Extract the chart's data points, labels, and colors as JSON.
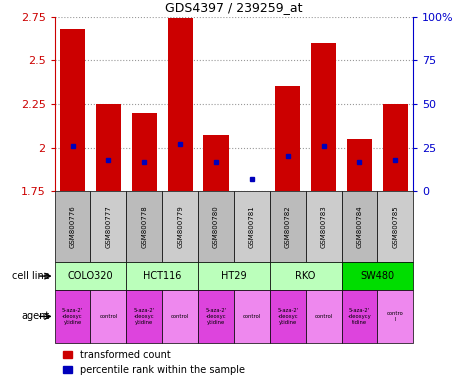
{
  "title": "GDS4397 / 239259_at",
  "samples": [
    "GSM800776",
    "GSM800777",
    "GSM800778",
    "GSM800779",
    "GSM800780",
    "GSM800781",
    "GSM800782",
    "GSM800783",
    "GSM800784",
    "GSM800785"
  ],
  "red_values": [
    2.68,
    2.25,
    2.2,
    2.74,
    2.07,
    1.75,
    2.35,
    2.6,
    2.05,
    2.25
  ],
  "blue_values": [
    0.26,
    0.18,
    0.17,
    0.27,
    0.17,
    0.07,
    0.2,
    0.26,
    0.17,
    0.18
  ],
  "ylim": [
    1.75,
    2.75
  ],
  "yticks": [
    1.75,
    2.0,
    2.25,
    2.5,
    2.75
  ],
  "ytick_labels": [
    "1.75",
    "2",
    "2.25",
    "2.5",
    "2.75"
  ],
  "right_yticks": [
    0,
    0.25,
    0.5,
    0.75,
    1.0
  ],
  "right_ytick_labels": [
    "0",
    "25",
    "50",
    "75",
    "100%"
  ],
  "bar_color": "#cc0000",
  "dot_color": "#0000bb",
  "base": 1.75,
  "bar_width": 0.7,
  "left_label_color": "#cc0000",
  "right_label_color": "#0000cc",
  "sample_bg_even": "#bbbbbb",
  "sample_bg_odd": "#cccccc",
  "cell_line_spans": [
    {
      "label": "COLO320",
      "start": 0,
      "end": 1,
      "color": "#bbffbb"
    },
    {
      "label": "HCT116",
      "start": 2,
      "end": 3,
      "color": "#bbffbb"
    },
    {
      "label": "HT29",
      "start": 4,
      "end": 5,
      "color": "#bbffbb"
    },
    {
      "label": "RKO",
      "start": 6,
      "end": 7,
      "color": "#bbffbb"
    },
    {
      "label": "SW480",
      "start": 8,
      "end": 9,
      "color": "#00dd00"
    }
  ],
  "agent_data": [
    {
      "label": "5-aza-2'\n-deoxyc\nytidine",
      "color": "#dd44dd"
    },
    {
      "label": "control",
      "color": "#ee88ee"
    },
    {
      "label": "5-aza-2'\n-deoxyc\nytidine",
      "color": "#dd44dd"
    },
    {
      "label": "control",
      "color": "#ee88ee"
    },
    {
      "label": "5-aza-2'\n-deoxyc\nytidine",
      "color": "#dd44dd"
    },
    {
      "label": "control",
      "color": "#ee88ee"
    },
    {
      "label": "5-aza-2'\n-deoxyc\nytidine",
      "color": "#dd44dd"
    },
    {
      "label": "control",
      "color": "#ee88ee"
    },
    {
      "label": "5-aza-2'\n-deoxycy\ntidine",
      "color": "#dd44dd"
    },
    {
      "label": "contro\nl",
      "color": "#ee88ee"
    }
  ]
}
